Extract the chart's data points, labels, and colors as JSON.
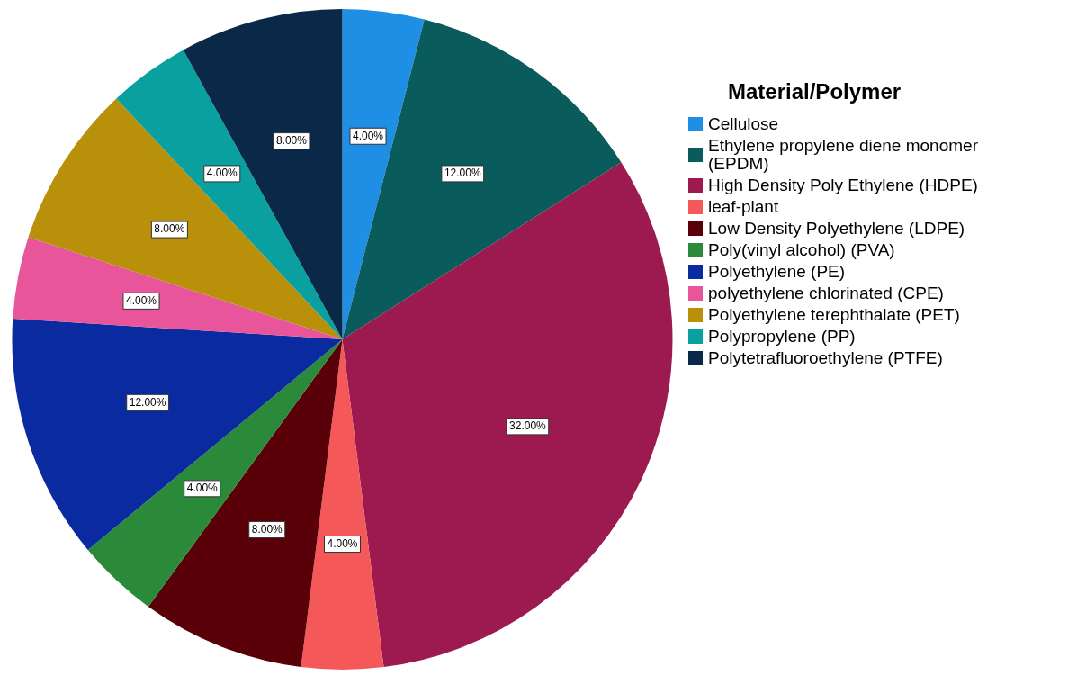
{
  "chart_data": {
    "type": "pie",
    "legend_title": "Material/Polymer",
    "legend": "right",
    "categories": [
      "Cellulose",
      "Ethylene propylene diene monomer (EPDM)",
      "High Density Poly Ethylene (HDPE)",
      "leaf-plant",
      "Low Density Polyethylene (LDPE)",
      "Poly(vinyl alcohol) (PVA)",
      "Polyethylene (PE)",
      "polyethylene chlorinated (CPE)",
      "Polyethylene terephthalate (PET)",
      "Polypropylene (PP)",
      "Polytetrafluoroethylene (PTFE)"
    ],
    "values": [
      4,
      12,
      32,
      4,
      8,
      4,
      12,
      4,
      8,
      4,
      8
    ],
    "value_labels": [
      "4.00%",
      "12.00%",
      "32.00%",
      "4.00%",
      "8.00%",
      "4.00%",
      "12.00%",
      "4.00%",
      "8.00%",
      "4.00%",
      "8.00%"
    ],
    "colors": [
      "#1f8fe6",
      "#0a5c5c",
      "#9c1a50",
      "#f55858",
      "#5a0008",
      "#2a8a3a",
      "#0a2aa0",
      "#e8559a",
      "#b8900a",
      "#0aa0a0",
      "#0a2848"
    ]
  }
}
